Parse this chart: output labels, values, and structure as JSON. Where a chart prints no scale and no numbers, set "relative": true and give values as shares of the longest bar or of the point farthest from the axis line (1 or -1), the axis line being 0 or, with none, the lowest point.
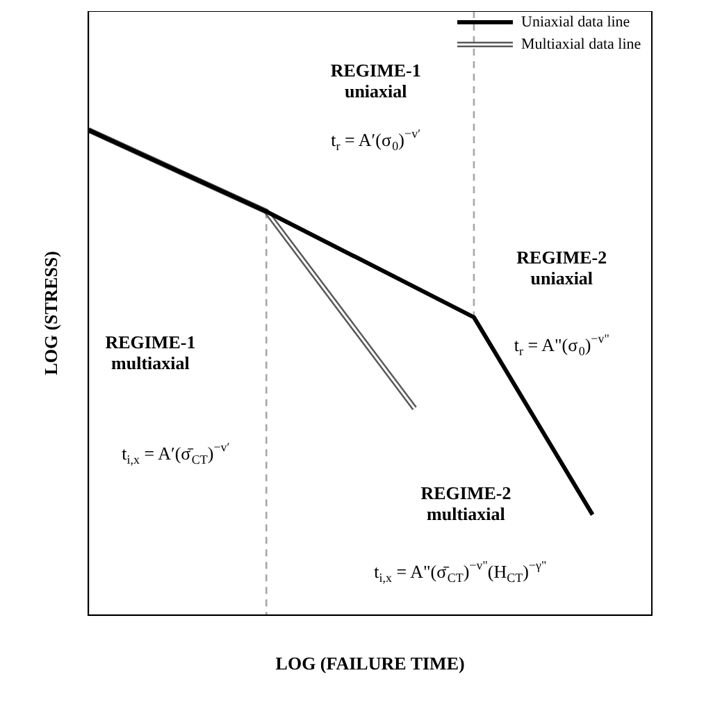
{
  "chart_data": {
    "type": "line",
    "relative": true,
    "xlabel": "LOG (FAILURE TIME)",
    "ylabel": "LOG (STRESS)",
    "legend": "top right",
    "grid": false,
    "marker": "none",
    "line_style": "solid",
    "categories": [
      null,
      null,
      null,
      null,
      null,
      null,
      null,
      null,
      null,
      null,
      null,
      null,
      null,
      null,
      null,
      null,
      null,
      null,
      null,
      null
    ],
    "series": [
      {
        "name": "Uniaxial data line",
        "color": "#000000",
        "values": [
          1,
          null,
          null,
          null,
          null,
          null,
          0.832,
          null,
          null,
          null,
          null,
          null,
          null,
          0.614,
          null,
          null,
          null,
          0.207,
          null,
          null
        ]
      },
      {
        "name": "Multiaxial data line",
        "color": "#595959",
        "values": [
          1,
          null,
          null,
          null,
          null,
          null,
          0.832,
          null,
          null,
          null,
          null,
          0.426,
          null,
          null,
          null,
          null,
          null,
          null,
          null,
          null
        ]
      }
    ],
    "annotations": [
      "REGIME-1\nuniaxial",
      "t$_{r}$ = A′(σ$_{0}$)$^{−v′}$",
      "REGIME-2\nuniaxial",
      "t$_{r}$ = A\"(σ$_{0}$)$^{−v\"}$",
      "REGIME-1\nmultiaxial",
      "t$_{i,x}$ = A′(σ̄$_{CT}$)$^{−v′}$",
      "REGIME-2\nmultiaxial",
      "t$_{i,x}$ = A\"(σ̄$_{CT}$)$^{−v\"}$(H$_{CT}$)$^{−γ\"}$"
    ]
  }
}
